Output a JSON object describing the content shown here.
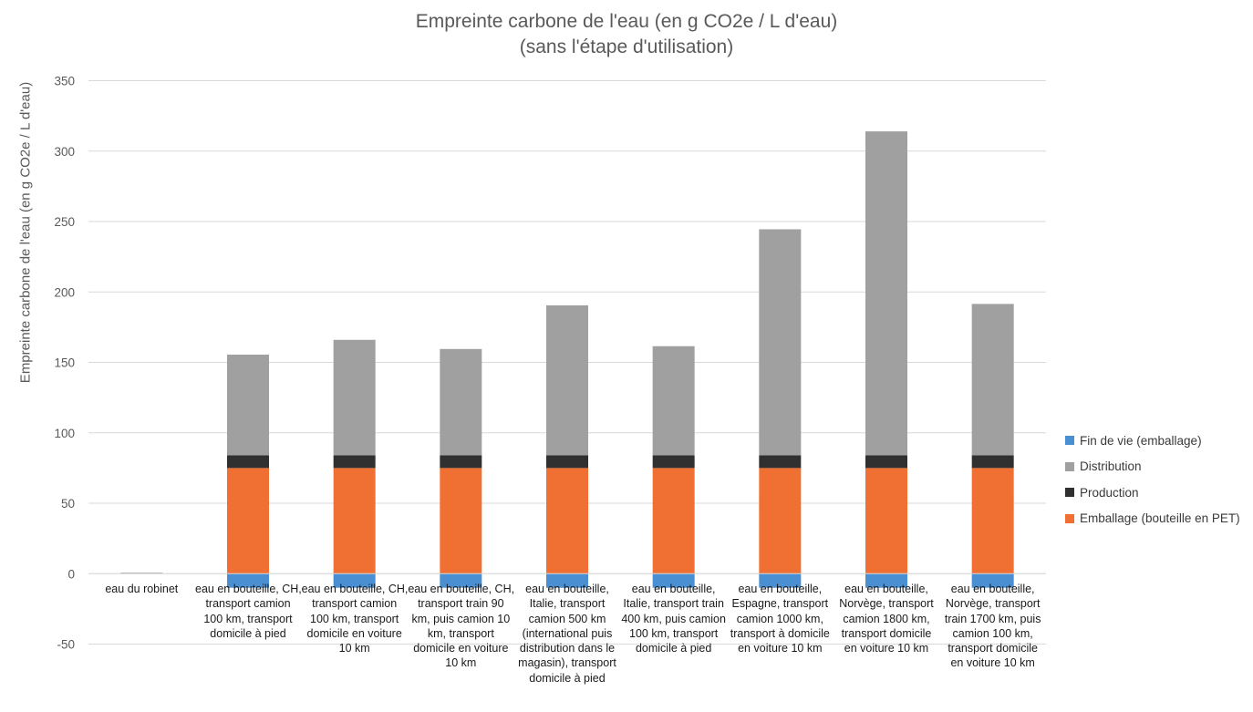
{
  "chart_data": {
    "type": "bar",
    "stacked": true,
    "title": "Empreinte carbone de l'eau (en g CO2e / L d'eau)",
    "subtitle": "(sans l'étape d'utilisation)",
    "ylabel": "Empreinte carbone de l'eau (en g CO2e / L d'eau)",
    "xlabel": "",
    "ylim": [
      -50,
      350
    ],
    "yticks": [
      "350",
      "300",
      "250",
      "200",
      "150",
      "100",
      "50",
      "0",
      "-50"
    ],
    "grid": true,
    "legend_position": "right",
    "categories": [
      "eau du robinet",
      "eau en bouteille, CH, transport camion 100 km, transport domicile à pied",
      "eau en bouteille, CH, transport camion 100 km, transport domicile en voiture 10 km",
      "eau en bouteille, CH, transport train 90 km, puis camion 10 km, transport domicile en voiture 10 km",
      "eau en bouteille, Italie, transport camion 500 km (international puis distribution dans le magasin), transport domicile à pied",
      "eau en bouteille, Italie, transport train 400 km, puis camion 100 km, transport domicile à pied",
      "eau en bouteille, Espagne, transport camion 1000 km, transport à domicile en voiture 10 km",
      "eau en bouteille, Norvège, transport camion 1800 km, transport domicile en voiture 10 km",
      "eau en bouteille, Norvège, transport train 1700 km, puis camion 100 km, transport domicile en voiture 10 km"
    ],
    "category_label_lines": [
      [
        "eau du robinet"
      ],
      [
        "eau en bouteille, CH,",
        "transport camion",
        "100 km, transport",
        "domicile à pied"
      ],
      [
        "eau en bouteille, CH,",
        "transport camion",
        "100 km, transport",
        "domicile en voiture",
        "10 km"
      ],
      [
        "eau en bouteille, CH,",
        "transport train 90",
        "km, puis camion 10",
        "km, transport",
        "domicile en voiture",
        "10 km"
      ],
      [
        "eau en bouteille,",
        "Italie, transport",
        "camion 500 km",
        "(international puis",
        "distribution dans le",
        "magasin), transport",
        "domicile à pied"
      ],
      [
        "eau en bouteille,",
        "Italie, transport train",
        "400 km, puis camion",
        "100 km, transport",
        "domicile à pied"
      ],
      [
        "eau en bouteille,",
        "Espagne, transport",
        "camion 1000 km,",
        "transport à domicile",
        "en voiture 10 km"
      ],
      [
        "eau en bouteille,",
        "Norvège, transport",
        "camion 1800 km,",
        "transport domicile",
        "en voiture 10 km"
      ],
      [
        "eau en bouteille,",
        "Norvège, transport",
        "train 1700 km, puis",
        "camion 100 km,",
        "transport domicile",
        "en voiture 10 km"
      ]
    ],
    "series": [
      {
        "name": "Emballage (bouteille en PET)",
        "color": "#f07033",
        "values": [
          0,
          75,
          75,
          75,
          75,
          75,
          75,
          75,
          75
        ]
      },
      {
        "name": "Production",
        "color": "#303030",
        "values": [
          0.5,
          9,
          9,
          9,
          9,
          9,
          9,
          9,
          9
        ]
      },
      {
        "name": "Distribution",
        "color": "#a0a0a0",
        "values": [
          0,
          71.5,
          82,
          75.5,
          106.5,
          77.5,
          160.5,
          230,
          107.5
        ]
      },
      {
        "name": "Fin de vie (emballage)",
        "color": "#4a8fd1",
        "values": [
          0,
          -10,
          -10,
          -10,
          -10,
          -10,
          -10,
          -10,
          -10
        ]
      }
    ],
    "legend_order": [
      "Fin de vie (emballage)",
      "Distribution",
      "Production",
      "Emballage (bouteille en PET)"
    ]
  }
}
